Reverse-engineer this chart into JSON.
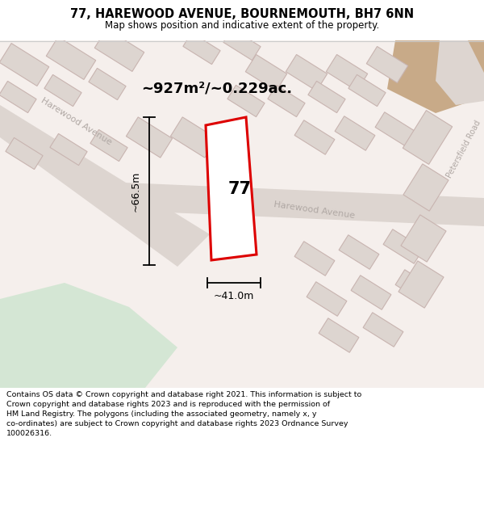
{
  "title": "77, HAREWOOD AVENUE, BOURNEMOUTH, BH7 6NN",
  "subtitle": "Map shows position and indicative extent of the property.",
  "footer": "Contains OS data © Crown copyright and database right 2021. This information is subject to\nCrown copyright and database rights 2023 and is reproduced with the permission of\nHM Land Registry. The polygons (including the associated geometry, namely x, y\nco-ordinates) are subject to Crown copyright and database rights 2023 Ordnance Survey\n100026316.",
  "area_label": "~927m²/~0.229ac.",
  "width_label": "~41.0m",
  "height_label": "~66.5m",
  "property_number": "77",
  "map_bg": "#f5efec",
  "green_area": "#d4e6d4",
  "tan_area": "#c8aa88",
  "road_fill": "#ddd5d0",
  "block_fill": "#ddd5d0",
  "block_stroke": "#c8b4b0",
  "property_fill": "#ffffff",
  "property_stroke": "#dd0000",
  "dim_color": "#000000",
  "street_color": "#b0a8a4",
  "title_color": "#000000",
  "footer_color": "#000000",
  "separator_color": "#cccccc"
}
